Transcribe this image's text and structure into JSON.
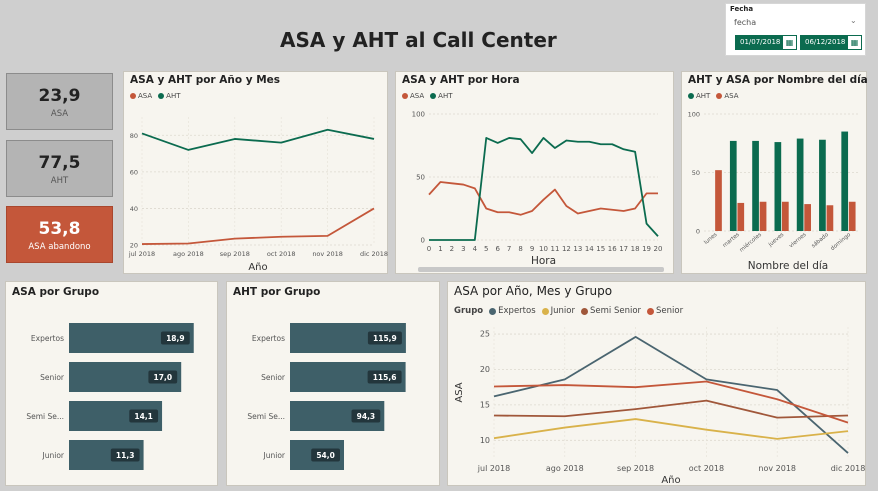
{
  "page_title": "ASA y AHT al Call Center",
  "slicer": {
    "label": "Fecha",
    "dropdown_value": "fecha",
    "date_from": "01/07/2018",
    "date_to": "06/12/2018"
  },
  "kpis": [
    {
      "value": "23,9",
      "label": "ASA"
    },
    {
      "value": "77,5",
      "label": "AHT"
    },
    {
      "value": "53,8",
      "label": "ASA abandono"
    }
  ],
  "colors": {
    "asa": "#c4573a",
    "aht": "#0b6b4f",
    "kpi_grey": "#b4b4b4",
    "kpi_red": "#c4573a",
    "bar": "#3e5f68"
  },
  "chart_data": [
    {
      "id": "month",
      "type": "line",
      "title": "ASA y AHT por Año y Mes",
      "xlabel": "Año",
      "categories": [
        "jul 2018",
        "ago 2018",
        "sep 2018",
        "oct 2018",
        "nov 2018",
        "dic 2018"
      ],
      "y_ticks": [
        "20",
        "40",
        "60",
        "80"
      ],
      "ylim": [
        20,
        90
      ],
      "series": [
        {
          "name": "ASA",
          "color": "#c4573a",
          "values": [
            20.5,
            20.8,
            23.5,
            24.5,
            25,
            40
          ]
        },
        {
          "name": "AHT",
          "color": "#0b6b4f",
          "values": [
            81,
            72,
            78,
            76,
            83,
            78
          ]
        }
      ]
    },
    {
      "id": "hour",
      "type": "line",
      "title": "ASA y AHT por Hora",
      "xlabel": "Hora",
      "categories": [
        "0",
        "1",
        "2",
        "3",
        "4",
        "5",
        "6",
        "7",
        "8",
        "9",
        "10",
        "11",
        "12",
        "13",
        "14",
        "15",
        "16",
        "17",
        "18",
        "19",
        "20"
      ],
      "y_ticks": [
        "0",
        "50",
        "100"
      ],
      "ylim": [
        0,
        100
      ],
      "series": [
        {
          "name": "ASA",
          "color": "#c4573a",
          "values": [
            36,
            46,
            45,
            44,
            41,
            25,
            22,
            22,
            20,
            23,
            32,
            40,
            27,
            21,
            23,
            25,
            24,
            23,
            25,
            37,
            37
          ]
        },
        {
          "name": "AHT",
          "color": "#0b6b4f",
          "values": [
            0,
            0,
            0,
            0,
            0,
            81,
            77,
            81,
            80,
            69,
            81,
            73,
            79,
            78,
            78,
            76,
            76,
            72,
            70,
            13,
            3
          ]
        }
      ]
    },
    {
      "id": "weekday",
      "type": "bar",
      "title": "AHT y ASA por Nombre del día",
      "xlabel": "Nombre del día",
      "categories": [
        "lunes",
        "martes",
        "miércoles",
        "jueves",
        "viernes",
        "sábado",
        "domingo"
      ],
      "y_ticks": [
        "0",
        "50",
        "100"
      ],
      "ylim": [
        0,
        100
      ],
      "series": [
        {
          "name": "AHT",
          "color": "#0b6b4f",
          "values": [
            0,
            77,
            77,
            76,
            79,
            78,
            85
          ]
        },
        {
          "name": "ASA",
          "color": "#c4573a",
          "values": [
            52,
            24,
            25,
            25,
            23,
            22,
            25
          ]
        }
      ]
    },
    {
      "id": "asa_group",
      "type": "bar",
      "orientation": "horizontal",
      "title": "ASA por Grupo",
      "categories": [
        "Expertos",
        "Senior",
        "Semi Se...",
        "Junior"
      ],
      "values": [
        18.9,
        17.0,
        14.1,
        11.3
      ],
      "labels": [
        "18,9",
        "17,0",
        "14,1",
        "11,3"
      ],
      "xlim": [
        0,
        20
      ]
    },
    {
      "id": "aht_group",
      "type": "bar",
      "orientation": "horizontal",
      "title": "AHT por Grupo",
      "categories": [
        "Expertos",
        "Senior",
        "Semi Se...",
        "Junior"
      ],
      "values": [
        115.9,
        115.6,
        94.3,
        54.0
      ],
      "labels": [
        "115,9",
        "115,6",
        "94,3",
        "54,0"
      ],
      "xlim": [
        0,
        130
      ]
    },
    {
      "id": "group_month",
      "type": "line",
      "title": "ASA por Año, Mes y Grupo",
      "legend_title": "Grupo",
      "xlabel": "Año",
      "ylabel": "ASA",
      "categories": [
        "jul 2018",
        "ago 2018",
        "sep 2018",
        "oct 2018",
        "nov 2018",
        "dic 2018"
      ],
      "y_ticks": [
        "10",
        "15",
        "20",
        "25"
      ],
      "ylim": [
        7.5,
        26
      ],
      "series": [
        {
          "name": "Expertos",
          "color": "#4a6570",
          "values": [
            16.2,
            18.6,
            24.6,
            18.6,
            17.1,
            8.2
          ]
        },
        {
          "name": "Junior",
          "color": "#d9b24a",
          "values": [
            10.3,
            11.8,
            13.0,
            11.5,
            10.2,
            11.3
          ]
        },
        {
          "name": "Semi Senior",
          "color": "#a0573a",
          "values": [
            13.5,
            13.4,
            14.4,
            15.6,
            13.2,
            13.5
          ]
        },
        {
          "name": "Senior",
          "color": "#c4573a",
          "values": [
            17.6,
            17.8,
            17.5,
            18.3,
            15.8,
            12.5
          ]
        }
      ]
    }
  ]
}
